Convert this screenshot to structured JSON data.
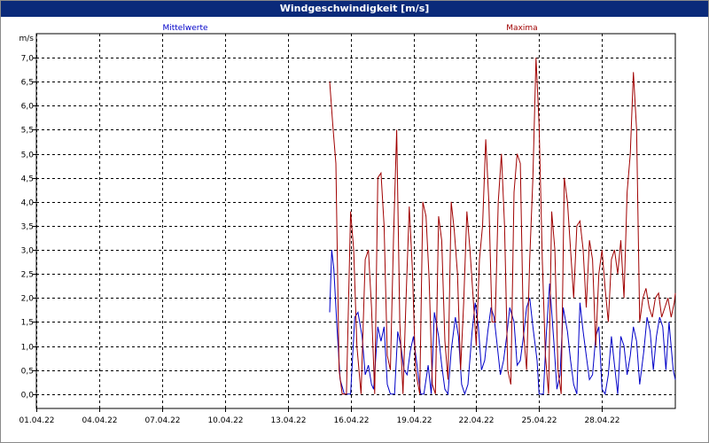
{
  "window": {
    "title": "Windgeschwindigkeit [m/s]"
  },
  "chart_data": {
    "type": "line",
    "title": "Windgeschwindigkeit [m/s]",
    "ylabel": "m/s",
    "xlabel": "",
    "ylim": [
      -0.3,
      7.5
    ],
    "y_ticks": [
      0.0,
      0.5,
      1.0,
      1.5,
      2.0,
      2.5,
      3.0,
      3.5,
      4.0,
      4.5,
      5.0,
      5.5,
      6.0,
      6.5,
      7.0
    ],
    "y_tick_labels": [
      "0,0",
      "0,5",
      "1,0",
      "1,5",
      "2,0",
      "2,5",
      "3,0",
      "3,5",
      "4,0",
      "4,5",
      "5,0",
      "5,5",
      "6,0",
      "6,5",
      "7,0"
    ],
    "xlim": [
      1,
      31.5
    ],
    "x_ticks": [
      1,
      4,
      7,
      10,
      13,
      16,
      19,
      22,
      25,
      28
    ],
    "x_tick_labels": [
      "01.04.22",
      "04.04.22",
      "07.04.22",
      "10.04.22",
      "13.04.22",
      "16.04.22",
      "19.04.22",
      "22.04.22",
      "25.04.22",
      "28.04.22"
    ],
    "grid": true,
    "legend_position": "top",
    "series": [
      {
        "name": "Mittelwerte",
        "color": "#0000c8",
        "x": [
          15.0,
          15.1,
          15.2,
          15.35,
          15.5,
          15.7,
          16.0,
          16.2,
          16.35,
          16.55,
          16.7,
          16.85,
          17.0,
          17.1,
          17.3,
          17.45,
          17.6,
          17.75,
          17.9,
          18.1,
          18.25,
          18.4,
          18.55,
          18.7,
          18.85,
          19.0,
          19.2,
          19.35,
          19.5,
          19.7,
          19.85,
          20.0,
          20.2,
          20.35,
          20.5,
          20.65,
          20.8,
          21.0,
          21.15,
          21.3,
          21.45,
          21.6,
          21.8,
          21.95,
          22.1,
          22.25,
          22.4,
          22.55,
          22.7,
          22.85,
          23.0,
          23.15,
          23.3,
          23.45,
          23.6,
          23.8,
          23.95,
          24.1,
          24.25,
          24.4,
          24.55,
          24.7,
          24.9,
          25.0,
          25.2,
          25.35,
          25.5,
          25.7,
          25.85,
          26.0,
          26.15,
          26.35,
          26.5,
          26.65,
          26.8,
          26.95,
          27.1,
          27.25,
          27.4,
          27.55,
          27.7,
          27.85,
          28.0,
          28.15,
          28.3,
          28.45,
          28.6,
          28.75,
          28.9,
          29.05,
          29.2,
          29.35,
          29.5,
          29.65,
          29.8,
          30.0,
          30.15,
          30.3,
          30.45,
          30.6,
          30.75,
          30.9,
          31.05,
          31.2,
          31.4,
          31.5
        ],
        "values": [
          1.7,
          3.0,
          2.6,
          1.4,
          0.3,
          0.0,
          0.0,
          1.6,
          1.7,
          1.2,
          0.4,
          0.6,
          0.2,
          0.1,
          1.4,
          1.1,
          1.4,
          0.2,
          0.0,
          0.0,
          1.3,
          1.0,
          0.5,
          0.4,
          0.9,
          1.2,
          0.5,
          0.0,
          0.0,
          0.6,
          0.0,
          1.7,
          1.2,
          0.6,
          0.1,
          0.0,
          0.9,
          1.6,
          1.2,
          0.2,
          0.0,
          0.2,
          1.3,
          1.9,
          1.4,
          0.5,
          0.7,
          1.3,
          1.8,
          1.6,
          1.0,
          0.4,
          0.7,
          1.2,
          1.8,
          1.5,
          0.6,
          0.7,
          1.2,
          1.8,
          2.0,
          1.4,
          0.7,
          0.0,
          0.0,
          1.3,
          2.3,
          1.1,
          0.1,
          0.4,
          1.8,
          1.3,
          0.7,
          0.2,
          0.0,
          1.9,
          1.3,
          0.8,
          0.3,
          0.4,
          1.2,
          1.4,
          0.1,
          0.0,
          0.4,
          1.2,
          0.6,
          0.0,
          1.2,
          1.0,
          0.4,
          0.8,
          1.4,
          1.1,
          0.2,
          0.9,
          1.6,
          1.3,
          0.5,
          1.2,
          1.6,
          1.4,
          0.5,
          1.5,
          0.5,
          0.3
        ]
      },
      {
        "name": "Maxima",
        "color": "#a00000",
        "x": [
          15.0,
          15.15,
          15.3,
          15.45,
          15.6,
          15.8,
          16.0,
          16.15,
          16.3,
          16.5,
          16.7,
          16.85,
          17.0,
          17.15,
          17.3,
          17.45,
          17.6,
          17.75,
          17.9,
          18.05,
          18.2,
          18.35,
          18.5,
          18.65,
          18.8,
          18.95,
          19.1,
          19.3,
          19.45,
          19.6,
          19.75,
          19.9,
          20.05,
          20.2,
          20.35,
          20.5,
          20.65,
          20.8,
          20.95,
          21.1,
          21.25,
          21.4,
          21.55,
          21.7,
          21.85,
          22.0,
          22.15,
          22.3,
          22.45,
          22.6,
          22.75,
          22.9,
          23.05,
          23.2,
          23.35,
          23.5,
          23.65,
          23.8,
          23.95,
          24.1,
          24.25,
          24.4,
          24.55,
          24.7,
          24.85,
          25.0,
          25.15,
          25.3,
          25.45,
          25.6,
          25.75,
          25.9,
          26.05,
          26.2,
          26.35,
          26.5,
          26.65,
          26.8,
          26.95,
          27.1,
          27.25,
          27.4,
          27.55,
          27.7,
          27.85,
          28.0,
          28.15,
          28.3,
          28.45,
          28.6,
          28.75,
          28.9,
          29.05,
          29.2,
          29.35,
          29.5,
          29.65,
          29.8,
          29.95,
          30.1,
          30.25,
          30.4,
          30.55,
          30.7,
          30.85,
          31.0,
          31.15,
          31.3,
          31.45,
          31.5
        ],
        "values": [
          6.5,
          5.6,
          4.8,
          0.5,
          0.0,
          0.0,
          3.8,
          3.0,
          1.0,
          0.0,
          2.8,
          3.0,
          1.8,
          0.0,
          4.5,
          4.6,
          3.5,
          0.8,
          0.5,
          3.3,
          5.5,
          1.5,
          0.0,
          2.0,
          3.9,
          2.6,
          0.5,
          0.0,
          4.0,
          3.7,
          2.4,
          0.2,
          0.0,
          3.7,
          3.2,
          1.1,
          0.3,
          4.0,
          3.4,
          2.5,
          0.5,
          1.9,
          3.8,
          3.0,
          2.0,
          1.0,
          2.8,
          3.5,
          5.3,
          4.0,
          1.5,
          1.5,
          4.0,
          5.0,
          3.5,
          0.5,
          0.2,
          4.2,
          5.0,
          4.8,
          1.3,
          0.5,
          2.8,
          4.5,
          7.0,
          5.6,
          2.8,
          0.8,
          0.0,
          3.8,
          3.0,
          0.5,
          0.0,
          4.5,
          4.0,
          3.0,
          2.0,
          3.5,
          3.6,
          3.0,
          1.8,
          3.2,
          2.8,
          1.0,
          2.5,
          3.0,
          2.2,
          1.5,
          2.8,
          3.0,
          2.5,
          3.2,
          2.0,
          4.2,
          5.0,
          6.7,
          5.5,
          1.5,
          2.0,
          2.2,
          1.8,
          1.6,
          2.0,
          2.1,
          1.6,
          1.8,
          2.0,
          1.6,
          1.9,
          2.1
        ]
      }
    ]
  }
}
